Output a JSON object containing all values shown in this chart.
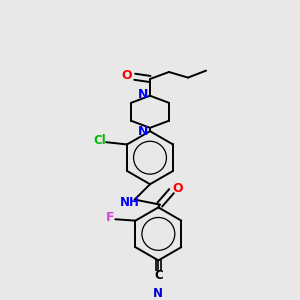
{
  "background_color": "#e8e8e8",
  "bond_color": "#000000",
  "atom_colors": {
    "O": "#ff0000",
    "N": "#0000ff",
    "Cl": "#00bb00",
    "F": "#dd44dd",
    "CN_C": "#000000",
    "CN_N": "#0000cc"
  },
  "figsize": [
    3.0,
    3.0
  ],
  "dpi": 100,
  "lw": 1.4,
  "inner_circle_ratio": 0.62
}
